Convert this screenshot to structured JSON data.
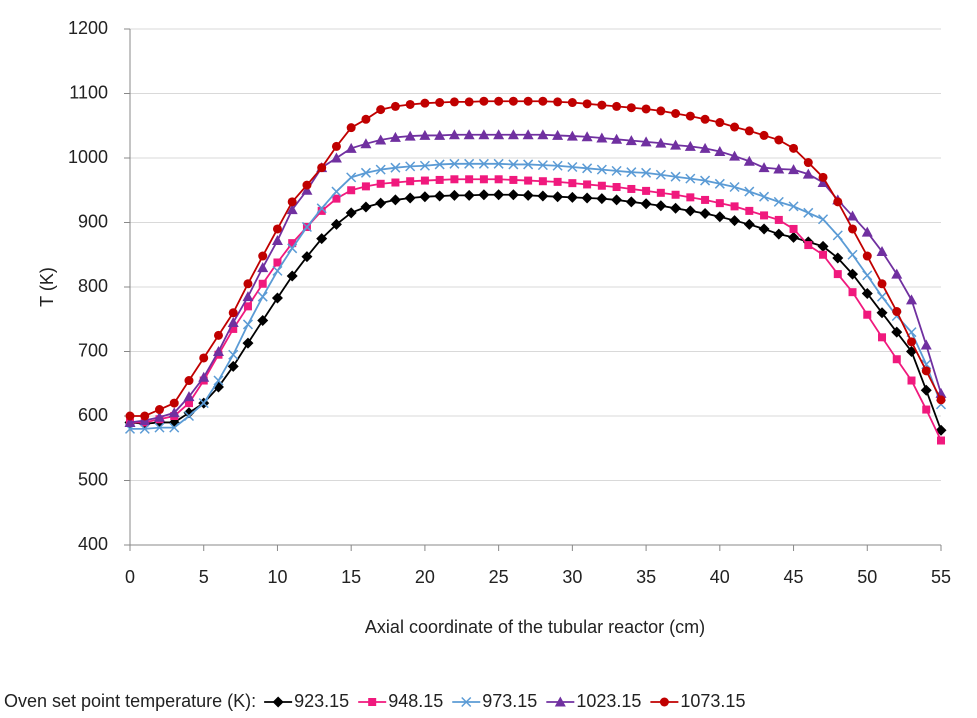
{
  "chart_data": {
    "type": "line",
    "x_label": "Axial coordinate of the tubular reactor (cm)",
    "y_label": "T (K)",
    "legend_title": "Oven set point temperature (K):",
    "legend_position": "bottom",
    "grid": true,
    "xlim": [
      0,
      55
    ],
    "ylim": [
      400,
      1200
    ],
    "xticks": [
      0,
      5,
      10,
      15,
      20,
      25,
      30,
      35,
      40,
      45,
      50,
      55
    ],
    "yticks": [
      400,
      500,
      600,
      700,
      800,
      900,
      1000,
      1100,
      1200
    ],
    "x": [
      0,
      1,
      2,
      3,
      4,
      5,
      6,
      7,
      8,
      9,
      10,
      11,
      12,
      13,
      14,
      15,
      16,
      17,
      18,
      19,
      20,
      21,
      22,
      23,
      24,
      25,
      26,
      27,
      28,
      29,
      30,
      31,
      32,
      33,
      34,
      35,
      36,
      37,
      38,
      39,
      40,
      41,
      42,
      43,
      44,
      45,
      46,
      47,
      48,
      49,
      50,
      51,
      52,
      53,
      54,
      55
    ],
    "series": [
      {
        "name": "923.15",
        "color": "#000000",
        "marker": "diamond",
        "values": [
          590,
          588,
          590,
          590,
          605,
          620,
          645,
          677,
          713,
          748,
          783,
          817,
          847,
          875,
          897,
          915,
          924,
          930,
          935,
          938,
          940,
          941,
          942,
          942,
          943,
          943,
          943,
          942,
          941,
          940,
          939,
          938,
          937,
          935,
          932,
          929,
          926,
          922,
          918,
          914,
          909,
          903,
          897,
          890,
          882,
          877,
          870,
          863,
          845,
          820,
          790,
          760,
          730,
          700,
          640,
          578
        ]
      },
      {
        "name": "948.15",
        "color": "#f0197d",
        "marker": "square",
        "values": [
          590,
          590,
          595,
          600,
          620,
          655,
          695,
          735,
          770,
          805,
          838,
          868,
          893,
          918,
          937,
          950,
          956,
          960,
          962,
          964,
          965,
          966,
          967,
          967,
          967,
          967,
          966,
          965,
          964,
          963,
          961,
          959,
          957,
          955,
          952,
          949,
          946,
          943,
          939,
          935,
          930,
          925,
          918,
          911,
          904,
          890,
          865,
          850,
          820,
          792,
          757,
          722,
          688,
          655,
          610,
          562
        ]
      },
      {
        "name": "973.15",
        "color": "#5b9bd5",
        "marker": "x",
        "values": [
          580,
          580,
          582,
          582,
          600,
          620,
          655,
          695,
          742,
          785,
          825,
          860,
          893,
          922,
          948,
          970,
          977,
          982,
          985,
          987,
          988,
          990,
          991,
          991,
          991,
          991,
          990,
          990,
          989,
          988,
          986,
          984,
          982,
          980,
          978,
          977,
          974,
          971,
          968,
          965,
          960,
          955,
          948,
          940,
          932,
          925,
          915,
          905,
          880,
          850,
          818,
          785,
          755,
          730,
          680,
          618
        ]
      },
      {
        "name": "1023.15",
        "color": "#7030a0",
        "marker": "triangle",
        "values": [
          590,
          593,
          598,
          605,
          630,
          660,
          700,
          745,
          785,
          830,
          872,
          920,
          950,
          985,
          1000,
          1015,
          1022,
          1028,
          1032,
          1034,
          1035,
          1035,
          1036,
          1036,
          1036,
          1036,
          1036,
          1036,
          1036,
          1035,
          1034,
          1033,
          1031,
          1029,
          1027,
          1025,
          1023,
          1020,
          1018,
          1015,
          1010,
          1003,
          995,
          985,
          983,
          982,
          975,
          962,
          935,
          910,
          885,
          855,
          820,
          780,
          710,
          635
        ]
      },
      {
        "name": "1073.15",
        "color": "#c00000",
        "marker": "circle",
        "values": [
          600,
          600,
          610,
          620,
          655,
          690,
          725,
          760,
          805,
          848,
          890,
          932,
          958,
          985,
          1018,
          1047,
          1060,
          1075,
          1080,
          1083,
          1085,
          1086,
          1087,
          1087,
          1088,
          1088,
          1088,
          1088,
          1088,
          1087,
          1086,
          1084,
          1082,
          1080,
          1078,
          1076,
          1073,
          1069,
          1065,
          1060,
          1055,
          1048,
          1042,
          1035,
          1028,
          1015,
          993,
          970,
          932,
          890,
          848,
          805,
          762,
          715,
          670,
          625
        ]
      }
    ]
  }
}
